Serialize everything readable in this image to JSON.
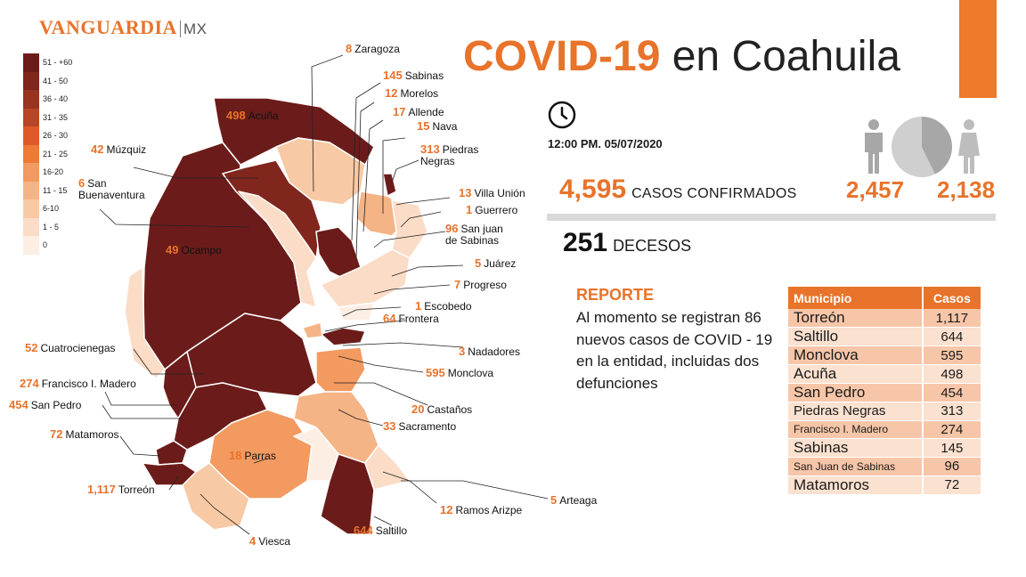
{
  "brand": {
    "name": "VANGUARDIA",
    "suffix": "MX"
  },
  "title": {
    "highlight": "COVID-19",
    "rest": "en Coahuila"
  },
  "legend": [
    {
      "label": "51 - +60",
      "color": "#6b1c1a"
    },
    {
      "label": "41 - 50",
      "color": "#80261c"
    },
    {
      "label": "36 - 40",
      "color": "#99331f"
    },
    {
      "label": "31 - 35",
      "color": "#b84523"
    },
    {
      "label": "26 - 30",
      "color": "#e05a28"
    },
    {
      "label": "21 - 25",
      "color": "#ee7a34"
    },
    {
      "label": "16-20",
      "color": "#f29a60"
    },
    {
      "label": "11 - 15",
      "color": "#f5b485"
    },
    {
      "label": "6-10",
      "color": "#f8c9a5"
    },
    {
      "label": "1 - 5",
      "color": "#fbdcc6"
    },
    {
      "label": "0",
      "color": "#fdeee3"
    }
  ],
  "municipalities": [
    {
      "name": "Zaragoza",
      "cases": "8"
    },
    {
      "name": "Sabinas",
      "cases": "145"
    },
    {
      "name": "Morelos",
      "cases": "12"
    },
    {
      "name": "Allende",
      "cases": "17"
    },
    {
      "name": "Nava",
      "cases": "15"
    },
    {
      "name": "Acuña",
      "cases": "498"
    },
    {
      "name": "Piedras Negras",
      "cases": "313"
    },
    {
      "name": "Múzquiz",
      "cases": "42"
    },
    {
      "name": "San Buenaventura",
      "cases": "6"
    },
    {
      "name": "Villa Unión",
      "cases": "13"
    },
    {
      "name": "Guerrero",
      "cases": "1"
    },
    {
      "name": "San juan de Sabinas",
      "cases": "96"
    },
    {
      "name": "Ocampo",
      "cases": "49"
    },
    {
      "name": "Juárez",
      "cases": "5"
    },
    {
      "name": "Progreso",
      "cases": "7"
    },
    {
      "name": "Escobedo",
      "cases": "1"
    },
    {
      "name": "Frontera",
      "cases": "64"
    },
    {
      "name": "Nadadores",
      "cases": "3"
    },
    {
      "name": "Cuatrocienegas",
      "cases": "52"
    },
    {
      "name": "Monclova",
      "cases": "595"
    },
    {
      "name": "Francisco I. Madero",
      "cases": "274"
    },
    {
      "name": "San Pedro",
      "cases": "454"
    },
    {
      "name": "Castaños",
      "cases": "20"
    },
    {
      "name": "Sacramento",
      "cases": "33"
    },
    {
      "name": "Matamoros",
      "cases": "72"
    },
    {
      "name": "Parras",
      "cases": "18"
    },
    {
      "name": "Torreón",
      "cases": "1,117"
    },
    {
      "name": "Arteaga",
      "cases": "5"
    },
    {
      "name": "Ramos Arizpe",
      "cases": "12"
    },
    {
      "name": "Saltillo",
      "cases": "644"
    },
    {
      "name": "Viesca",
      "cases": "4"
    }
  ],
  "stats": {
    "timestamp": "12:00 PM. 05/07/2020",
    "confirmed": "4,595",
    "confirmed_label": "CASOS CONFIRMADOS",
    "men": "2,457",
    "women": "2,138",
    "deaths": "251",
    "deaths_label": "DECESOS"
  },
  "report": {
    "title": "REPORTE",
    "text": " Al momento se registran 86 nuevos casos de COVID - 19 en la entidad, incluidas dos defunciones"
  },
  "ranking": {
    "headers": [
      "Municipio",
      "Casos"
    ],
    "rows": [
      {
        "municipio": "Torreón",
        "casos": "1,117"
      },
      {
        "municipio": "Saltillo",
        "casos": "644"
      },
      {
        "municipio": "Monclova",
        "casos": "595"
      },
      {
        "municipio": "Acuña",
        "casos": "498"
      },
      {
        "municipio": "San Pedro",
        "casos": "454"
      },
      {
        "municipio": "Piedras Negras",
        "casos": "313"
      },
      {
        "municipio": "Francisco I. Madero",
        "casos": "274"
      },
      {
        "municipio": "Sabinas",
        "casos": "145"
      },
      {
        "municipio": "San Juan de Sabinas",
        "casos": "96"
      },
      {
        "municipio": "Matamoros",
        "casos": "72"
      }
    ]
  },
  "icons": {
    "clock": "clock-icon",
    "men": "man-icon",
    "women": "woman-icon",
    "pie": "gender-pie-icon"
  },
  "colors": {
    "accent": "#e8732a",
    "dark": "#6b1c1a"
  }
}
